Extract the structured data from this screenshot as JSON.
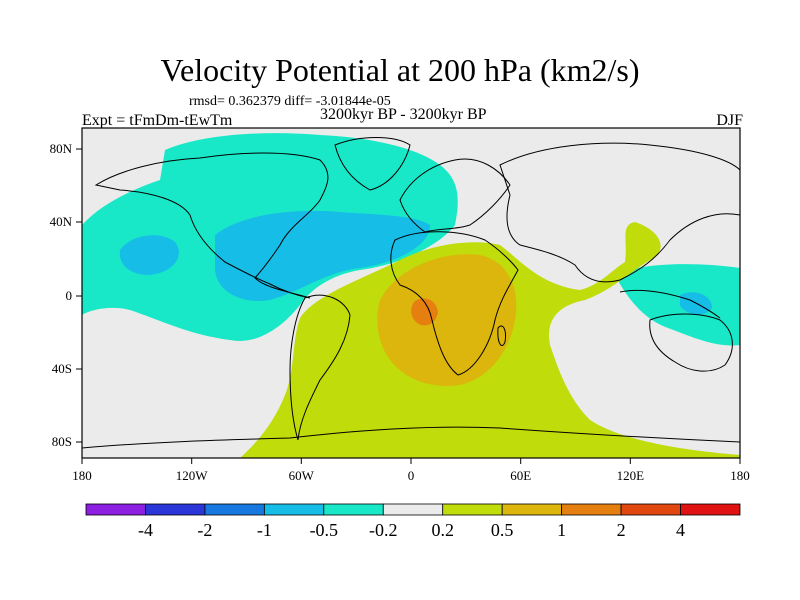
{
  "title": "Velocity Potential at 200 hPa (km2/s)",
  "stats": "rmsd= 0.362379 diff= -3.01844e-05",
  "experiment": "Expt = tFmDm-tEwTm",
  "period": "3200kyr BP - 3200kyr BP",
  "season": "DJF",
  "lon_ticks": [
    "180",
    "120W",
    "60W",
    "0",
    "60E",
    "120E",
    "180"
  ],
  "lat_ticks": [
    "80N",
    "40N",
    "0",
    "40S",
    "80S"
  ],
  "colorbar": {
    "colors": [
      "#8c1fe0",
      "#2b36d9",
      "#1778e0",
      "#16bde6",
      "#19e8c8",
      "#ebebeb",
      "#c0dc0a",
      "#dcb60c",
      "#e47f10",
      "#e04810",
      "#e01212"
    ],
    "labels": [
      "-4",
      "-2",
      "-1",
      "-0.5",
      "-0.2",
      "0.2",
      "0.5",
      "1",
      "2",
      "4"
    ]
  },
  "map_colors": {
    "ocean_background": "#ebebeb",
    "negative_weak": "#19e8c8",
    "negative_moderate": "#16bde6",
    "positive_weak": "#c0dc0a",
    "positive_moderate": "#dcb60c",
    "positive_strong": "#e47f10"
  }
}
